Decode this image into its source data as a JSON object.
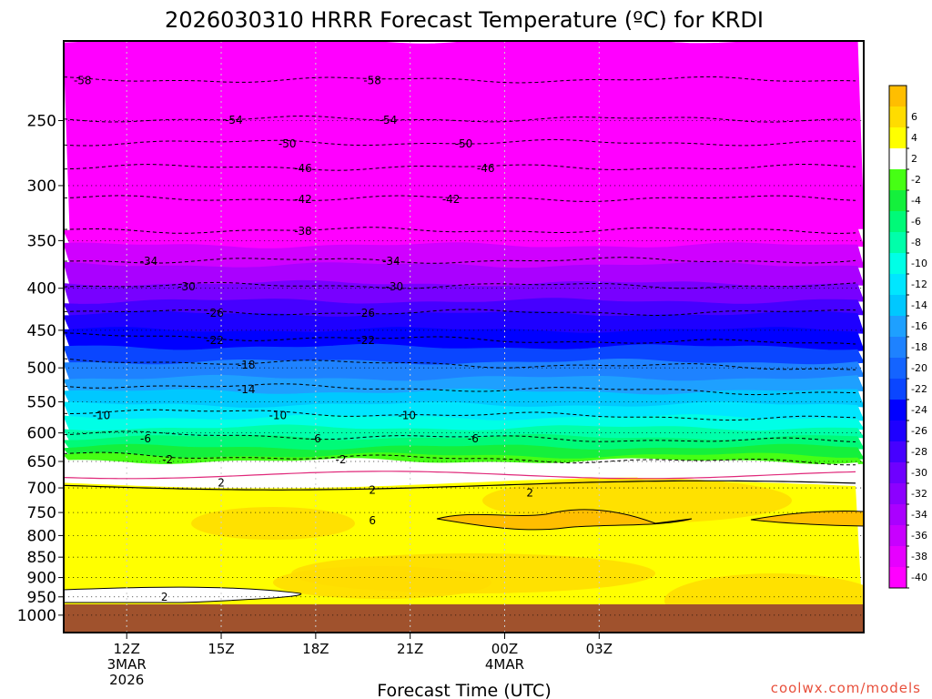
{
  "chart_data": {
    "type": "heatmap",
    "title": "2026030310 HRRR Forecast Temperature (ºC) for KRDI",
    "xlabel": "Forecast Time (UTC)",
    "ylabel": "",
    "credit": "coolwx.com/models",
    "x_range_hours": [
      10,
      35.4
    ],
    "y_range_hpa": [
      200,
      1050
    ],
    "y_ticks": [
      {
        "p": 250,
        "label": "250"
      },
      {
        "p": 300,
        "label": "300"
      },
      {
        "p": 350,
        "label": "350"
      },
      {
        "p": 400,
        "label": "400"
      },
      {
        "p": 450,
        "label": "450"
      },
      {
        "p": 500,
        "label": "500"
      },
      {
        "p": 550,
        "label": "550"
      },
      {
        "p": 600,
        "label": "600"
      },
      {
        "p": 650,
        "label": "650"
      },
      {
        "p": 700,
        "label": "700"
      },
      {
        "p": 750,
        "label": "750"
      },
      {
        "p": 800,
        "label": "800"
      },
      {
        "p": 850,
        "label": "850"
      },
      {
        "p": 900,
        "label": "900"
      },
      {
        "p": 950,
        "label": "950"
      },
      {
        "p": 1000,
        "label": "1000"
      }
    ],
    "x_ticks": [
      {
        "h": 12,
        "lines": [
          "12Z",
          "3MAR",
          "2026"
        ]
      },
      {
        "h": 15,
        "lines": [
          "15Z"
        ]
      },
      {
        "h": 18,
        "lines": [
          "18Z"
        ]
      },
      {
        "h": 21,
        "lines": [
          "21Z"
        ]
      },
      {
        "h": 24,
        "lines": [
          "00Z",
          "4MAR"
        ]
      },
      {
        "h": 27,
        "lines": [
          "03Z"
        ]
      }
    ],
    "color_scale": [
      {
        "t": "-40",
        "color": "#ff00ff"
      },
      {
        "t": "-38",
        "color": "#e600ff"
      },
      {
        "t": "-36",
        "color": "#c800ff"
      },
      {
        "t": "-34",
        "color": "#aa00ff"
      },
      {
        "t": "-32",
        "color": "#8c00ff"
      },
      {
        "t": "-30",
        "color": "#6e00ff"
      },
      {
        "t": "-28",
        "color": "#4600ff"
      },
      {
        "t": "-26",
        "color": "#1e00ff"
      },
      {
        "t": "-24",
        "color": "#0000ff"
      },
      {
        "t": "-22",
        "color": "#0a46ff"
      },
      {
        "t": "-20",
        "color": "#1464ff"
      },
      {
        "t": "-18",
        "color": "#1e82ff"
      },
      {
        "t": "-16",
        "color": "#1ea0ff"
      },
      {
        "t": "-14",
        "color": "#00c8ff"
      },
      {
        "t": "-12",
        "color": "#00e6ff"
      },
      {
        "t": "-10",
        "color": "#00ffe6"
      },
      {
        "t": "-8",
        "color": "#00ffaa"
      },
      {
        "t": "-6",
        "color": "#00fa78"
      },
      {
        "t": "-4",
        "color": "#14f03c"
      },
      {
        "t": "-2",
        "color": "#46ff14"
      },
      {
        "t": "2",
        "color": "#ffffff"
      },
      {
        "t": "4",
        "color": "#ffff00"
      },
      {
        "t": "6",
        "color": "#ffdc00"
      },
      {
        "t": "",
        "color": "#ffbe00"
      }
    ],
    "surface_color": "#a0522d",
    "isotherm_levels_hpa": [
      {
        "t": -58,
        "p": 223
      },
      {
        "t": -54,
        "p": 249
      },
      {
        "t": -50,
        "p": 266
      },
      {
        "t": -46,
        "p": 285
      },
      {
        "t": -42,
        "p": 311
      },
      {
        "t": -38,
        "p": 340
      },
      {
        "t": -34,
        "p": 370
      },
      {
        "t": -30,
        "p": 397
      },
      {
        "t": -26,
        "p": 428
      },
      {
        "t": -22,
        "p": 462
      },
      {
        "t": -18,
        "p": 495
      },
      {
        "t": -14,
        "p": 530
      },
      {
        "t": -10,
        "p": 570
      },
      {
        "t": -6,
        "p": 608
      },
      {
        "t": -2,
        "p": 645
      }
    ],
    "isotherm_labels": [
      {
        "h": 10.6,
        "p": 223,
        "text": "-58"
      },
      {
        "h": 19.8,
        "p": 223,
        "text": "-58"
      },
      {
        "h": 15.4,
        "p": 249,
        "text": "-54"
      },
      {
        "h": 20.3,
        "p": 249,
        "text": "-54"
      },
      {
        "h": 17.1,
        "p": 266,
        "text": "-50"
      },
      {
        "h": 22.7,
        "p": 266,
        "text": "-50"
      },
      {
        "h": 17.6,
        "p": 285,
        "text": "-46"
      },
      {
        "h": 23.4,
        "p": 285,
        "text": "-46"
      },
      {
        "h": 17.6,
        "p": 311,
        "text": "-42"
      },
      {
        "h": 22.3,
        "p": 311,
        "text": "-42"
      },
      {
        "h": 17.6,
        "p": 340,
        "text": "-38"
      },
      {
        "h": 12.7,
        "p": 370,
        "text": "-34"
      },
      {
        "h": 20.4,
        "p": 370,
        "text": "-34"
      },
      {
        "h": 13.9,
        "p": 397,
        "text": "-30"
      },
      {
        "h": 20.5,
        "p": 397,
        "text": "-30"
      },
      {
        "h": 14.8,
        "p": 428,
        "text": "-26"
      },
      {
        "h": 19.6,
        "p": 428,
        "text": "-26"
      },
      {
        "h": 14.8,
        "p": 462,
        "text": "-22"
      },
      {
        "h": 19.6,
        "p": 462,
        "text": "-22"
      },
      {
        "h": 15.8,
        "p": 495,
        "text": "-18"
      },
      {
        "h": 15.8,
        "p": 530,
        "text": "-14"
      },
      {
        "h": 11.2,
        "p": 570,
        "text": "-10"
      },
      {
        "h": 16.8,
        "p": 570,
        "text": "-10"
      },
      {
        "h": 20.9,
        "p": 570,
        "text": "-10"
      },
      {
        "h": 12.6,
        "p": 608,
        "text": "-6"
      },
      {
        "h": 18,
        "p": 608,
        "text": "-6"
      },
      {
        "h": 23,
        "p": 608,
        "text": "-6"
      },
      {
        "h": 13.3,
        "p": 645,
        "text": "-2"
      },
      {
        "h": 18.8,
        "p": 645,
        "text": "-2"
      },
      {
        "h": 15,
        "p": 688,
        "text": "2"
      },
      {
        "h": 19.8,
        "p": 703,
        "text": "2"
      },
      {
        "h": 24.8,
        "p": 708,
        "text": "2"
      },
      {
        "h": 19.8,
        "p": 765,
        "text": "6"
      },
      {
        "h": 13.2,
        "p": 948,
        "text": "2"
      }
    ]
  }
}
